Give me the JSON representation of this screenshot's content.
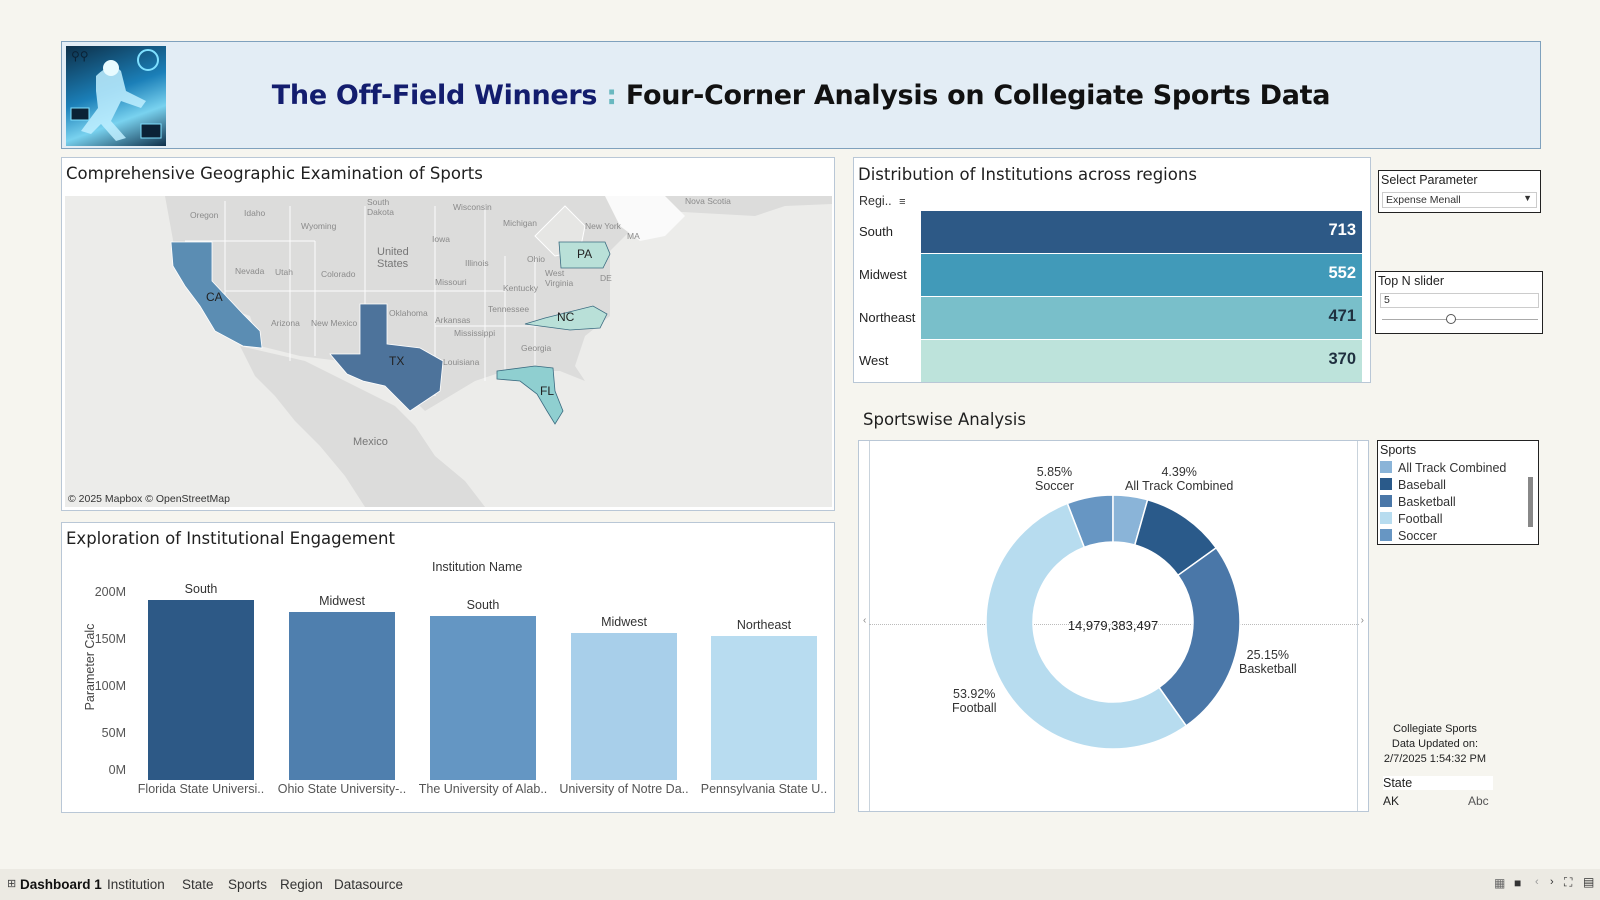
{
  "header": {
    "title_part1": "The Off-Field Winners",
    "title_sep": " : ",
    "title_part2": "Four-Corner Analysis on Collegiate Sports Data",
    "logo_icon": "athlete-logo-icon"
  },
  "map": {
    "title": "Comprehensive Geographic Examination of Sports",
    "attribution": "© 2025 Mapbox © OpenStreetMap",
    "highlighted_states": [
      {
        "code": "CA",
        "color": "#5b8db3"
      },
      {
        "code": "TX",
        "color": "#4d739b"
      },
      {
        "code": "PA",
        "color": "#b9e0d8"
      },
      {
        "code": "NC",
        "color": "#b9e0d8"
      },
      {
        "code": "FL",
        "color": "#8fcfd0"
      }
    ],
    "base_labels": [
      "Oregon",
      "Idaho",
      "Wyoming",
      "South Dakota",
      "Wisconsin",
      "Michigan",
      "New York",
      "Nova Scotia",
      "MA",
      "Iowa",
      "United States",
      "Illinois",
      "Ohio",
      "PA",
      "Nevada",
      "Utah",
      "Colorado",
      "Missouri",
      "Kentucky",
      "West Virginia",
      "DE",
      "Arizona",
      "New Mexico",
      "Oklahoma",
      "Tennessee",
      "Arkansas",
      "Mississippi",
      "Georgia",
      "Louisiana",
      "Mexico",
      "NC",
      "CA",
      "TX",
      "FL"
    ]
  },
  "region_chart": {
    "title": "Distribution of Institutions across regions",
    "column_header": "Regi..",
    "sort_icon": "sort-icon",
    "rows": [
      {
        "region": "South",
        "value": "713",
        "color": "#2d5986",
        "text_color": "#ffffff"
      },
      {
        "region": "Midwest",
        "value": "552",
        "color": "#419ab9",
        "text_color": "#ffffff"
      },
      {
        "region": "Northeast",
        "value": "471",
        "color": "#79bfca",
        "text_color": "#1f2f3f"
      },
      {
        "region": "West",
        "value": "370",
        "color": "#bde3db",
        "text_color": "#1f2f3f"
      }
    ]
  },
  "controls": {
    "param_label": "Select Parameter",
    "param_value": "Expense Menall",
    "topn_label": "Top N slider",
    "topn_value": "5"
  },
  "institution_chart": {
    "title": "Exploration of Institutional Engagement",
    "header": "Institution Name",
    "ylabel": "Parameter Calc",
    "y_ticks": [
      "200M",
      "150M",
      "100M",
      "50M",
      "0M"
    ]
  },
  "sports_chart": {
    "title": "Sportswise Analysis",
    "center_total": "14,979,383,497",
    "legend_title": "Sports",
    "legend": [
      {
        "name": "All Track Combined",
        "color": "#8ab4d8"
      },
      {
        "name": "Baseball",
        "color": "#2a5a8a"
      },
      {
        "name": "Basketball",
        "color": "#4a77a8"
      },
      {
        "name": "Football",
        "color": "#b7dcef"
      },
      {
        "name": "Soccer",
        "color": "#6796c3"
      }
    ]
  },
  "update_note": {
    "line1": "Collegiate Sports",
    "line2": "Data Updated on:",
    "line3": "2/7/2025 1:54:32 PM"
  },
  "state_table": {
    "header": "State",
    "row_state": "AK",
    "row_value": "Abc"
  },
  "tabs": [
    {
      "label": "Dashboard 1",
      "active": true
    },
    {
      "label": "Institution",
      "active": false
    },
    {
      "label": "State",
      "active": false
    },
    {
      "label": "Sports",
      "active": false
    },
    {
      "label": "Region",
      "active": false
    },
    {
      "label": "Datasource",
      "active": false
    }
  ],
  "chart_data": [
    {
      "type": "bar",
      "title": "Exploration of Institutional Engagement",
      "xlabel": "Institution Name",
      "ylabel": "Parameter Calc",
      "categories": [
        "Florida State Universi..",
        "Ohio State University-..",
        "The University of Alab..",
        "University of Notre Da..",
        "Pennsylvania State U.."
      ],
      "values": [
        190000000,
        178000000,
        174000000,
        156000000,
        152000000
      ],
      "bar_labels": [
        "South",
        "Midwest",
        "South",
        "Midwest",
        "Northeast"
      ],
      "colors": [
        "#2d5986",
        "#4f7fae",
        "#6496c3",
        "#a8cfea",
        "#b8dcf0"
      ],
      "ylim": [
        0,
        200000000
      ]
    },
    {
      "type": "pie",
      "title": "Sportswise Analysis",
      "center_label": "14,979,383,497",
      "slices": [
        {
          "name": "Soccer",
          "pct": 5.85,
          "label": "5.85%",
          "color": "#6796c3"
        },
        {
          "name": "All Track Combined",
          "pct": 4.39,
          "label": "4.39%",
          "color": "#8ab4d8"
        },
        {
          "name": "Baseball",
          "pct": 10.69,
          "label": "",
          "color": "#2a5a8a"
        },
        {
          "name": "Basketball",
          "pct": 25.15,
          "label": "25.15%",
          "color": "#4a77a8"
        },
        {
          "name": "Football",
          "pct": 53.92,
          "label": "53.92%",
          "color": "#b7dcef"
        }
      ]
    },
    {
      "type": "bar",
      "title": "Distribution of Institutions across regions",
      "categories": [
        "South",
        "Midwest",
        "Northeast",
        "West"
      ],
      "values": [
        713,
        552,
        471,
        370
      ]
    }
  ]
}
